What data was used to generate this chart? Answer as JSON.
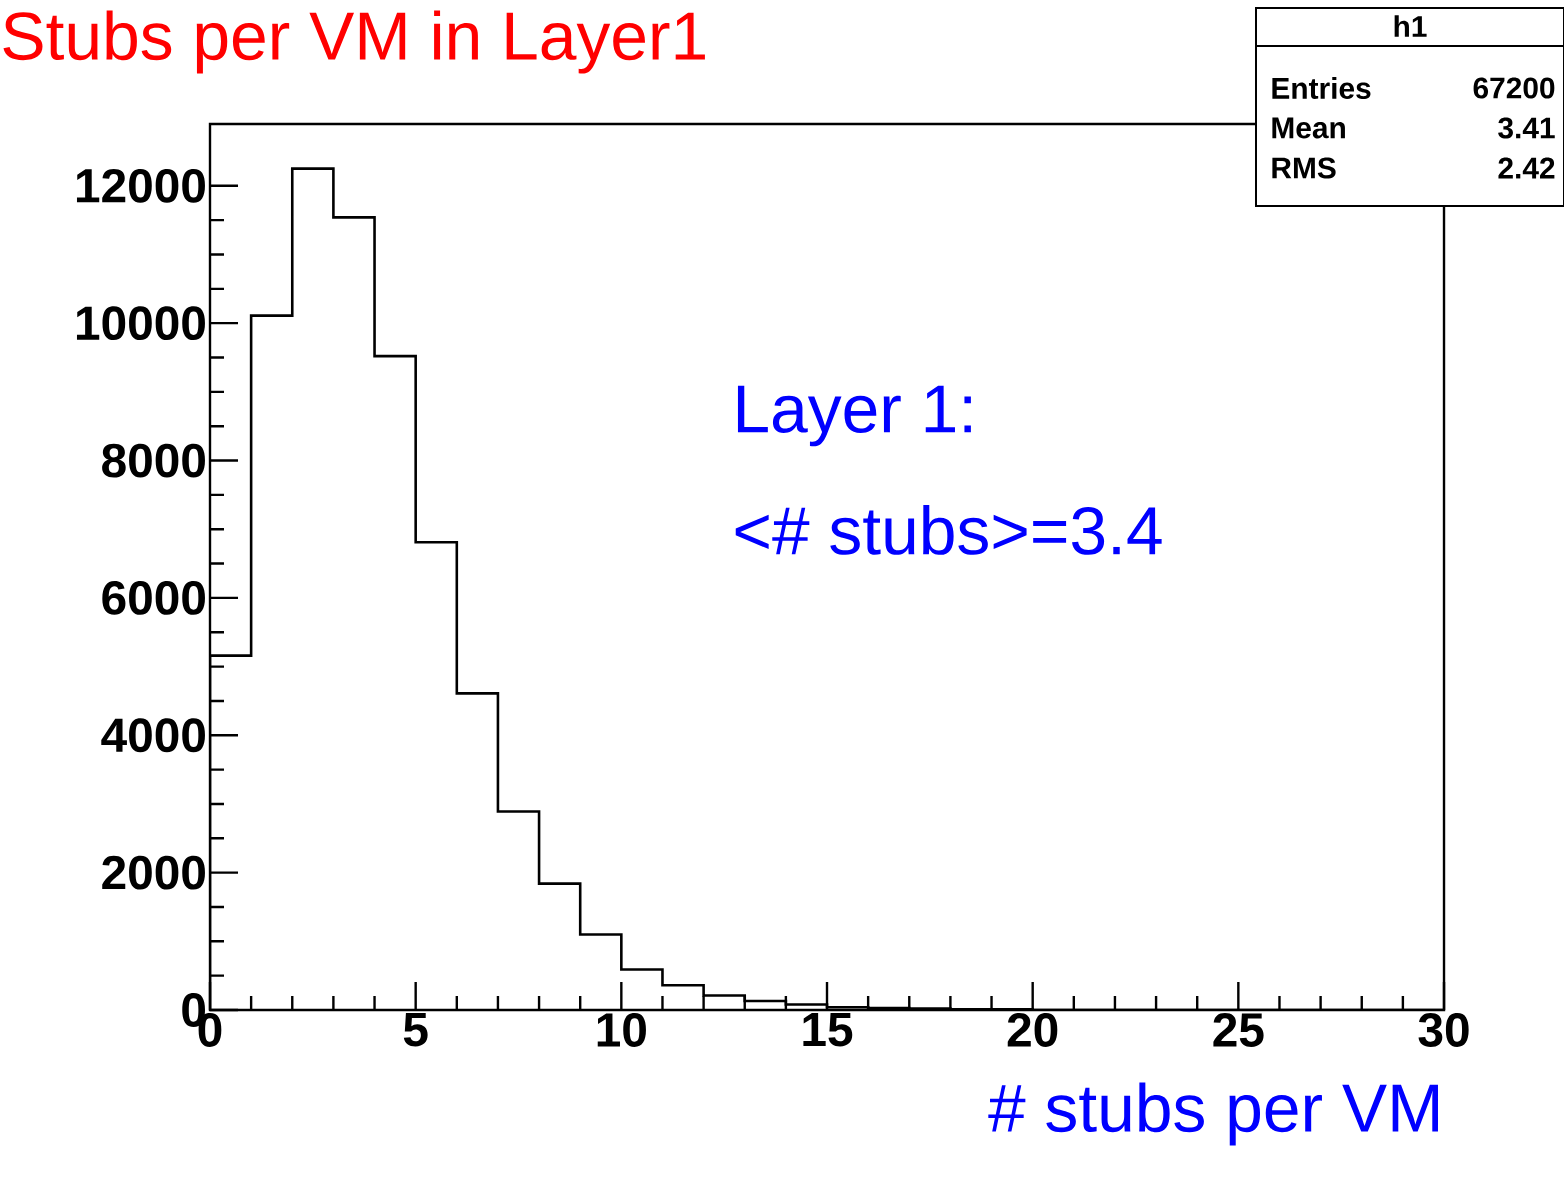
{
  "chart_data": {
    "type": "histogram",
    "title": "Stubs per VM in Layer1",
    "xlabel": "# stubs per VM",
    "color": "#000000",
    "bins": [
      0,
      1,
      2,
      3,
      4,
      5,
      6,
      7,
      8,
      9,
      10,
      11,
      12,
      13,
      14,
      15,
      16,
      17,
      18,
      19,
      20,
      21,
      22,
      23,
      24,
      25,
      26,
      27,
      28,
      29,
      30
    ],
    "values": [
      5160,
      10110,
      12250,
      11540,
      9520,
      6810,
      4610,
      2890,
      1840,
      1100,
      590,
      360,
      210,
      130,
      80,
      40,
      30,
      20,
      10,
      10,
      0,
      0,
      0,
      0,
      0,
      0,
      0,
      0,
      0,
      0
    ],
    "xlim": [
      0,
      30
    ],
    "ylim": [
      0,
      12900
    ],
    "xticks": [
      0,
      5,
      10,
      15,
      20,
      25,
      30
    ],
    "yticks": [
      0,
      2000,
      4000,
      6000,
      8000,
      10000,
      12000
    ],
    "annotations": [
      "Layer 1:",
      "<# stubs>=3.4",
      "h1",
      "Entries",
      "67200",
      "Mean",
      "3.41",
      "RMS",
      "2.42"
    ]
  }
}
